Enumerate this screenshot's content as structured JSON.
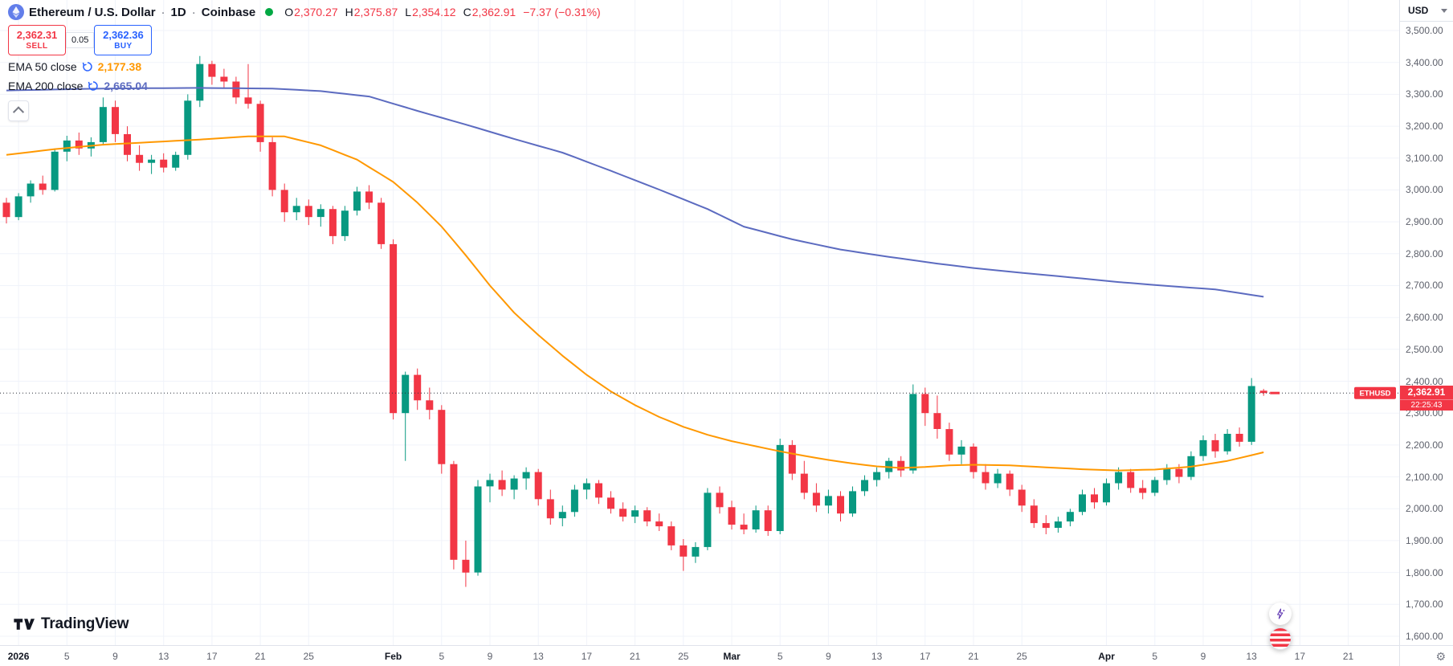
{
  "header": {
    "title": "Ethereum / U.S. Dollar",
    "sep": "·",
    "interval": "1D",
    "exchange": "Coinbase",
    "ohlc": [
      {
        "label": "O",
        "value": "2,370.27"
      },
      {
        "label": "H",
        "value": "2,375.87"
      },
      {
        "label": "L",
        "value": "2,354.12"
      },
      {
        "label": "C",
        "value": "2,362.91"
      }
    ],
    "change": "−7.37 (−0.31%)"
  },
  "order_panel": {
    "sell_price": "2,362.31",
    "sell_label": "SELL",
    "spread": "0.05",
    "buy_price": "2,362.36",
    "buy_label": "BUY"
  },
  "indicators": [
    {
      "name": "EMA 50 close",
      "value": "2,177.38",
      "color": "#ff9800"
    },
    {
      "name": "EMA 200 close",
      "value": "2,665.04",
      "color": "#5c6bc0"
    }
  ],
  "price_scale": {
    "currency": "USD",
    "labels": [
      "3,500.00",
      "3,400.00",
      "3,300.00",
      "3,200.00",
      "3,100.00",
      "3,000.00",
      "2,900.00",
      "2,800.00",
      "2,700.00",
      "2,600.00",
      "2,500.00",
      "2,400.00",
      "2,300.00",
      "2,200.00",
      "2,100.00",
      "2,000.00",
      "1,900.00",
      "1,800.00",
      "1,700.00",
      "1,600.00"
    ]
  },
  "last_price": {
    "tag": "ETHUSD",
    "value": "2,362.91",
    "countdown": "22:25:43"
  },
  "logo": {
    "text": "TradingView"
  },
  "chart_data": {
    "type": "candlestick",
    "title": "Ethereum / U.S. Dollar · 1D · Coinbase",
    "symbol": "ETHUSD",
    "timeframe": "1D",
    "ylim": [
      1600,
      3500
    ],
    "y_step": 100,
    "grid": true,
    "last_price": 2362.91,
    "colors": {
      "up": "#089981",
      "down": "#f23645",
      "grid": "#f0f3fa",
      "last_line": "#2a2e39",
      "tag": "#f23645"
    },
    "time_labels": [
      {
        "i": 1,
        "t": "2026",
        "major": true
      },
      {
        "i": 5,
        "t": "5"
      },
      {
        "i": 9,
        "t": "9"
      },
      {
        "i": 13,
        "t": "13"
      },
      {
        "i": 17,
        "t": "17"
      },
      {
        "i": 21,
        "t": "21"
      },
      {
        "i": 25,
        "t": "25"
      },
      {
        "i": 32,
        "t": "Feb",
        "major": true
      },
      {
        "i": 36,
        "t": "5"
      },
      {
        "i": 40,
        "t": "9"
      },
      {
        "i": 44,
        "t": "13"
      },
      {
        "i": 48,
        "t": "17"
      },
      {
        "i": 52,
        "t": "21"
      },
      {
        "i": 56,
        "t": "25"
      },
      {
        "i": 60,
        "t": "Mar",
        "major": true
      },
      {
        "i": 64,
        "t": "5"
      },
      {
        "i": 68,
        "t": "9"
      },
      {
        "i": 72,
        "t": "13"
      },
      {
        "i": 76,
        "t": "17"
      },
      {
        "i": 80,
        "t": "21"
      },
      {
        "i": 84,
        "t": "25"
      },
      {
        "i": 91,
        "t": "Apr",
        "major": true
      },
      {
        "i": 95,
        "t": "5"
      },
      {
        "i": 99,
        "t": "9"
      },
      {
        "i": 103,
        "t": "13"
      },
      {
        "i": 107,
        "t": "17"
      },
      {
        "i": 111,
        "t": "21"
      }
    ],
    "candles": [
      [
        2960,
        2975,
        2895,
        2915
      ],
      [
        2915,
        2990,
        2905,
        2980
      ],
      [
        2980,
        3030,
        2960,
        3020
      ],
      [
        3020,
        3045,
        2985,
        3000
      ],
      [
        3000,
        3130,
        2995,
        3120
      ],
      [
        3120,
        3170,
        3090,
        3155
      ],
      [
        3155,
        3180,
        3110,
        3130
      ],
      [
        3130,
        3165,
        3105,
        3150
      ],
      [
        3150,
        3290,
        3140,
        3260
      ],
      [
        3260,
        3280,
        3150,
        3175
      ],
      [
        3175,
        3200,
        3090,
        3110
      ],
      [
        3110,
        3140,
        3060,
        3085
      ],
      [
        3085,
        3110,
        3050,
        3095
      ],
      [
        3095,
        3115,
        3055,
        3070
      ],
      [
        3070,
        3120,
        3060,
        3110
      ],
      [
        3110,
        3300,
        3095,
        3280
      ],
      [
        3280,
        3420,
        3260,
        3395
      ],
      [
        3395,
        3405,
        3330,
        3355
      ],
      [
        3355,
        3380,
        3320,
        3340
      ],
      [
        3340,
        3355,
        3270,
        3290
      ],
      [
        3290,
        3395,
        3255,
        3270
      ],
      [
        3270,
        3280,
        3120,
        3150
      ],
      [
        3150,
        3165,
        2980,
        3000
      ],
      [
        3000,
        3020,
        2900,
        2930
      ],
      [
        2930,
        2975,
        2905,
        2950
      ],
      [
        2950,
        2970,
        2890,
        2915
      ],
      [
        2915,
        2955,
        2885,
        2940
      ],
      [
        2940,
        2950,
        2830,
        2855
      ],
      [
        2855,
        2950,
        2840,
        2935
      ],
      [
        2935,
        3010,
        2920,
        2995
      ],
      [
        2995,
        3015,
        2940,
        2960
      ],
      [
        2960,
        2975,
        2815,
        2830
      ],
      [
        2830,
        2845,
        2280,
        2300
      ],
      [
        2300,
        2430,
        2150,
        2420
      ],
      [
        2420,
        2440,
        2310,
        2340
      ],
      [
        2340,
        2380,
        2280,
        2310
      ],
      [
        2310,
        2325,
        2110,
        2140
      ],
      [
        2140,
        2150,
        1810,
        1840
      ],
      [
        1840,
        1900,
        1755,
        1800
      ],
      [
        1800,
        2090,
        1790,
        2070
      ],
      [
        2070,
        2110,
        2020,
        2090
      ],
      [
        2090,
        2120,
        2040,
        2060
      ],
      [
        2060,
        2105,
        2030,
        2095
      ],
      [
        2095,
        2130,
        2060,
        2115
      ],
      [
        2115,
        2125,
        2010,
        2030
      ],
      [
        2030,
        2060,
        1950,
        1970
      ],
      [
        1970,
        2010,
        1945,
        1990
      ],
      [
        1990,
        2075,
        1975,
        2060
      ],
      [
        2060,
        2095,
        2030,
        2080
      ],
      [
        2080,
        2090,
        2015,
        2035
      ],
      [
        2035,
        2055,
        1985,
        2000
      ],
      [
        2000,
        2020,
        1960,
        1975
      ],
      [
        1975,
        2010,
        1955,
        1995
      ],
      [
        1995,
        2005,
        1945,
        1960
      ],
      [
        1960,
        1985,
        1930,
        1945
      ],
      [
        1945,
        1960,
        1870,
        1885
      ],
      [
        1885,
        1905,
        1805,
        1850
      ],
      [
        1850,
        1895,
        1830,
        1880
      ],
      [
        1880,
        2065,
        1870,
        2050
      ],
      [
        2050,
        2070,
        1985,
        2005
      ],
      [
        2005,
        2025,
        1935,
        1950
      ],
      [
        1950,
        1985,
        1920,
        1935
      ],
      [
        1935,
        2010,
        1925,
        1995
      ],
      [
        1995,
        2010,
        1915,
        1930
      ],
      [
        1930,
        2220,
        1920,
        2200
      ],
      [
        2200,
        2215,
        2090,
        2110
      ],
      [
        2110,
        2150,
        2030,
        2050
      ],
      [
        2050,
        2080,
        1990,
        2010
      ],
      [
        2010,
        2060,
        1985,
        2040
      ],
      [
        2040,
        2055,
        1960,
        1985
      ],
      [
        1985,
        2070,
        1975,
        2055
      ],
      [
        2055,
        2105,
        2040,
        2090
      ],
      [
        2090,
        2130,
        2070,
        2115
      ],
      [
        2115,
        2160,
        2095,
        2150
      ],
      [
        2150,
        2165,
        2100,
        2120
      ],
      [
        2120,
        2390,
        2110,
        2360
      ],
      [
        2360,
        2380,
        2260,
        2300
      ],
      [
        2300,
        2355,
        2220,
        2250
      ],
      [
        2250,
        2270,
        2150,
        2170
      ],
      [
        2170,
        2215,
        2140,
        2195
      ],
      [
        2195,
        2205,
        2095,
        2115
      ],
      [
        2115,
        2140,
        2060,
        2080
      ],
      [
        2080,
        2125,
        2065,
        2110
      ],
      [
        2110,
        2120,
        2040,
        2060
      ],
      [
        2060,
        2075,
        1990,
        2010
      ],
      [
        2010,
        2030,
        1940,
        1955
      ],
      [
        1955,
        1980,
        1920,
        1940
      ],
      [
        1940,
        1975,
        1925,
        1960
      ],
      [
        1960,
        2000,
        1945,
        1990
      ],
      [
        1990,
        2060,
        1980,
        2045
      ],
      [
        2045,
        2065,
        2000,
        2020
      ],
      [
        2020,
        2095,
        2010,
        2080
      ],
      [
        2080,
        2130,
        2060,
        2115
      ],
      [
        2115,
        2125,
        2050,
        2065
      ],
      [
        2065,
        2090,
        2030,
        2050
      ],
      [
        2050,
        2100,
        2040,
        2090
      ],
      [
        2090,
        2140,
        2075,
        2125
      ],
      [
        2125,
        2140,
        2080,
        2100
      ],
      [
        2100,
        2180,
        2090,
        2165
      ],
      [
        2165,
        2230,
        2150,
        2215
      ],
      [
        2215,
        2235,
        2160,
        2180
      ],
      [
        2180,
        2250,
        2170,
        2235
      ],
      [
        2235,
        2255,
        2195,
        2210
      ],
      [
        2210,
        2410,
        2200,
        2385
      ],
      [
        2370.27,
        2375.87,
        2354.12,
        2362.91
      ]
    ],
    "series": [
      {
        "name": "EMA 50",
        "color": "#ff9800",
        "points": [
          [
            0,
            3110
          ],
          [
            4,
            3128
          ],
          [
            8,
            3142
          ],
          [
            12,
            3150
          ],
          [
            16,
            3158
          ],
          [
            20,
            3168
          ],
          [
            23,
            3168
          ],
          [
            26,
            3140
          ],
          [
            29,
            3095
          ],
          [
            32,
            3025
          ],
          [
            34,
            2960
          ],
          [
            36,
            2885
          ],
          [
            38,
            2795
          ],
          [
            40,
            2700
          ],
          [
            42,
            2615
          ],
          [
            44,
            2545
          ],
          [
            46,
            2480
          ],
          [
            48,
            2420
          ],
          [
            50,
            2368
          ],
          [
            52,
            2325
          ],
          [
            54,
            2288
          ],
          [
            56,
            2257
          ],
          [
            58,
            2232
          ],
          [
            60,
            2212
          ],
          [
            62,
            2196
          ],
          [
            64,
            2180
          ],
          [
            66,
            2166
          ],
          [
            68,
            2153
          ],
          [
            70,
            2142
          ],
          [
            72,
            2133
          ],
          [
            74,
            2128
          ],
          [
            76,
            2131
          ],
          [
            78,
            2136
          ],
          [
            80,
            2138
          ],
          [
            83,
            2136
          ],
          [
            86,
            2130
          ],
          [
            89,
            2124
          ],
          [
            92,
            2120
          ],
          [
            95,
            2123
          ],
          [
            98,
            2132
          ],
          [
            101,
            2150
          ],
          [
            104,
            2177
          ]
        ]
      },
      {
        "name": "EMA 200",
        "color": "#5c6bc0",
        "points": [
          [
            0,
            3312
          ],
          [
            8,
            3318
          ],
          [
            16,
            3320
          ],
          [
            22,
            3318
          ],
          [
            26,
            3310
          ],
          [
            30,
            3293
          ],
          [
            34,
            3248
          ],
          [
            38,
            3205
          ],
          [
            42,
            3160
          ],
          [
            46,
            3117
          ],
          [
            50,
            3060
          ],
          [
            54,
            3001
          ],
          [
            58,
            2940
          ],
          [
            61,
            2885
          ],
          [
            65,
            2845
          ],
          [
            69,
            2813
          ],
          [
            73,
            2790
          ],
          [
            77,
            2769
          ],
          [
            80,
            2755
          ],
          [
            84,
            2740
          ],
          [
            88,
            2726
          ],
          [
            92,
            2711
          ],
          [
            96,
            2699
          ],
          [
            100,
            2688
          ],
          [
            104,
            2665
          ]
        ]
      }
    ]
  }
}
